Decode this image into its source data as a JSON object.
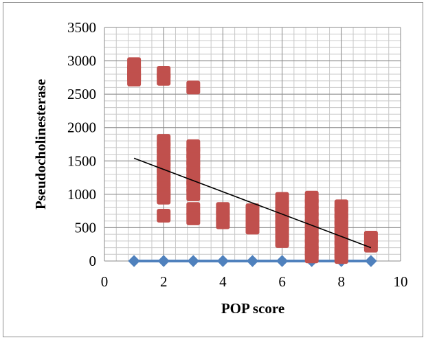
{
  "chart_data": {
    "type": "scatter",
    "title": "",
    "xlabel": "POP score",
    "ylabel": "Pseudocholinesterase",
    "xlim": [
      0,
      10
    ],
    "ylim": [
      0,
      3500
    ],
    "x_major_step": 2,
    "y_major_step": 500,
    "x_minor_step": 0.4,
    "y_minor_step": 100,
    "x_ticks": [
      "0",
      "2",
      "4",
      "6",
      "8",
      "10"
    ],
    "y_ticks": [
      "0",
      "500",
      "1000",
      "1500",
      "2000",
      "2500",
      "3000",
      "3500"
    ],
    "grid": true,
    "legend": "none",
    "series": [
      {
        "marker": "diamond",
        "color": "#4f81bd",
        "line": true,
        "points": [
          [
            1,
            0
          ],
          [
            2,
            0
          ],
          [
            3,
            0
          ],
          [
            4,
            0
          ],
          [
            5,
            0
          ],
          [
            6,
            0
          ],
          [
            7,
            0
          ],
          [
            8,
            0
          ],
          [
            9,
            0
          ]
        ]
      },
      {
        "marker": "square",
        "color": "#c0504d",
        "line": false,
        "points": [
          [
            1,
            2950
          ],
          [
            1,
            2850
          ],
          [
            1,
            2780
          ],
          [
            1,
            2720
          ],
          [
            2,
            2820
          ],
          [
            2,
            2730
          ],
          [
            2,
            1800
          ],
          [
            2,
            1700
          ],
          [
            2,
            1600
          ],
          [
            2,
            1500
          ],
          [
            2,
            1400
          ],
          [
            2,
            1300
          ],
          [
            2,
            1200
          ],
          [
            2,
            1100
          ],
          [
            2,
            1000
          ],
          [
            2,
            950
          ],
          [
            2,
            680
          ],
          [
            3,
            2600
          ],
          [
            3,
            1720
          ],
          [
            3,
            1620
          ],
          [
            3,
            1520
          ],
          [
            3,
            1420
          ],
          [
            3,
            1320
          ],
          [
            3,
            1220
          ],
          [
            3,
            1120
          ],
          [
            3,
            1000
          ],
          [
            3,
            780
          ],
          [
            3,
            640
          ],
          [
            4,
            780
          ],
          [
            4,
            680
          ],
          [
            4,
            580
          ],
          [
            5,
            760
          ],
          [
            5,
            660
          ],
          [
            5,
            500
          ],
          [
            6,
            930
          ],
          [
            6,
            830
          ],
          [
            6,
            730
          ],
          [
            6,
            630
          ],
          [
            6,
            530
          ],
          [
            6,
            430
          ],
          [
            6,
            300
          ],
          [
            7,
            950
          ],
          [
            7,
            850
          ],
          [
            7,
            750
          ],
          [
            7,
            650
          ],
          [
            7,
            550
          ],
          [
            7,
            450
          ],
          [
            7,
            350
          ],
          [
            7,
            250
          ],
          [
            7,
            150
          ],
          [
            7,
            70
          ],
          [
            8,
            820
          ],
          [
            8,
            720
          ],
          [
            8,
            620
          ],
          [
            8,
            520
          ],
          [
            8,
            420
          ],
          [
            8,
            320
          ],
          [
            8,
            220
          ],
          [
            8,
            120
          ],
          [
            8,
            60
          ],
          [
            9,
            350
          ],
          [
            9,
            230
          ]
        ]
      }
    ],
    "trendline": {
      "color": "#000000",
      "from": [
        1,
        1540
      ],
      "to": [
        9,
        200
      ]
    }
  }
}
